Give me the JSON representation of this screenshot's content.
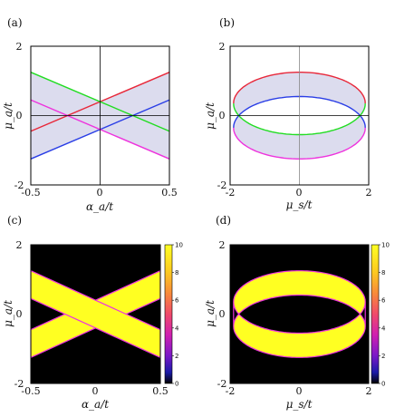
{
  "chart_data": [
    {
      "type": "line",
      "panel_label": "(a)",
      "xlabel": "α_a/t",
      "ylabel": "μ_a/t",
      "xlim": [
        -0.5,
        0.5
      ],
      "ylim": [
        -2,
        2
      ],
      "xticks": [
        "-0.5",
        "0",
        "0.5"
      ],
      "yticks": [
        "2",
        "0",
        "-2"
      ],
      "band_color": "#dcdcee",
      "series": [
        {
          "color": "#e8283a",
          "x": [
            -0.5,
            0.5
          ],
          "y": [
            -0.45,
            1.25
          ]
        },
        {
          "color": "#2a3ee6",
          "x": [
            -0.5,
            0.5
          ],
          "y": [
            -1.25,
            0.45
          ]
        },
        {
          "color": "#22dd22",
          "x": [
            -0.5,
            0.5
          ],
          "y": [
            1.25,
            -0.45
          ]
        },
        {
          "color": "#ee33dd",
          "x": [
            -0.5,
            0.5
          ],
          "y": [
            0.45,
            -1.25
          ]
        }
      ]
    },
    {
      "type": "line",
      "panel_label": "(b)",
      "xlabel": "μ_s/t",
      "ylabel": "μ_a/t",
      "xlim": [
        -2,
        2
      ],
      "ylim": [
        -2,
        2
      ],
      "xticks": [
        "-2",
        "0",
        "2"
      ],
      "yticks": [
        "2",
        "0",
        "-2"
      ],
      "band_color": "#dcdcee",
      "curves": [
        {
          "color": "#e8283a",
          "description_shape": "upper arc",
          "center_y": 0.35,
          "rx": 1.9,
          "ry": 0.9,
          "half": "upper"
        },
        {
          "color": "#2a3ee6",
          "description_shape": "upper arc",
          "center_y": -0.35,
          "rx": 1.9,
          "ry": 0.9,
          "half": "upper"
        },
        {
          "color": "#22dd22",
          "description_shape": "lower arc",
          "center_y": 0.35,
          "rx": 1.9,
          "ry": 0.9,
          "half": "lower"
        },
        {
          "color": "#ee33dd",
          "description_shape": "lower arc",
          "center_y": -0.35,
          "rx": 1.9,
          "ry": 0.9,
          "half": "lower"
        }
      ]
    },
    {
      "type": "heatmap",
      "panel_label": "(c)",
      "xlabel": "α_a/t",
      "ylabel": "μ_a/t",
      "xlim": [
        -0.5,
        0.5
      ],
      "ylim": [
        -2,
        2
      ],
      "xticks": [
        "-0.5",
        "0",
        "0.5"
      ],
      "yticks": [
        "2",
        "0",
        "-2"
      ],
      "colorbar": {
        "min": 0,
        "max": 10,
        "ticks": [
          "10",
          "8",
          "6",
          "4",
          "2",
          "0"
        ]
      },
      "background": "#000000",
      "fill": "#ffff22",
      "edge": "#ee33dd"
    },
    {
      "type": "heatmap",
      "panel_label": "(d)",
      "xlabel": "μ_s/t",
      "ylabel": "μ_a/t",
      "xlim": [
        -2,
        2
      ],
      "ylim": [
        -2,
        2
      ],
      "xticks": [
        "-2",
        "0",
        "2"
      ],
      "yticks": [
        "2",
        "0",
        "-2"
      ],
      "colorbar": {
        "min": 0,
        "max": 10,
        "ticks": [
          "10",
          "8",
          "6",
          "4",
          "2",
          "0"
        ]
      },
      "background": "#000000",
      "fill": "#ffff22",
      "edge": "#ee33dd"
    }
  ]
}
